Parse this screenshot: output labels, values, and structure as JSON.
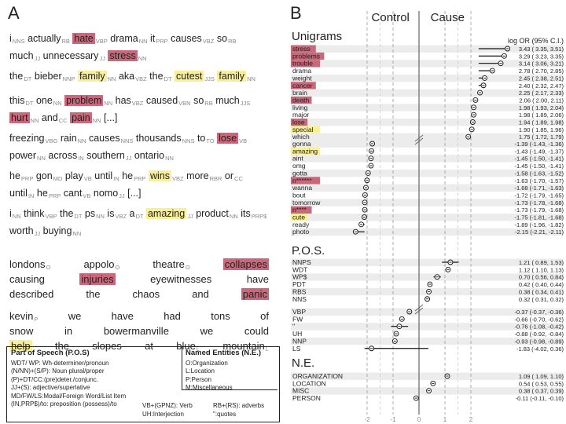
{
  "panel_a_label": "A",
  "panel_b_label": "B",
  "sentences": [
    {
      "tokens": [
        [
          "i",
          "NNS",
          ""
        ],
        [
          "actually",
          "RB",
          ""
        ],
        [
          "hate",
          "VBP",
          "red"
        ],
        [
          "drama",
          "NN",
          ""
        ],
        [
          "it",
          "PRP",
          ""
        ],
        [
          "causes",
          "VBZ",
          ""
        ],
        [
          "so",
          "RB",
          ""
        ],
        [
          "much",
          "JJ",
          ""
        ],
        [
          "unnecessary",
          "JJ",
          ""
        ],
        [
          "stress",
          "NN",
          "red"
        ]
      ]
    },
    {
      "tokens": [
        [
          "the",
          "DT",
          ""
        ],
        [
          "bieber",
          "NNP",
          ""
        ],
        [
          "family",
          "NN",
          "yel"
        ],
        [
          "aka",
          "VBZ",
          ""
        ],
        [
          "the",
          "DT",
          ""
        ],
        [
          "cutest",
          "JJS",
          "yel"
        ],
        [
          "family",
          "NN",
          "yel"
        ]
      ]
    },
    {
      "tokens": [
        [
          "this",
          "DT",
          ""
        ],
        [
          "one",
          "NN",
          ""
        ],
        [
          "problem",
          "NN",
          "red"
        ],
        [
          "has",
          "VBZ",
          ""
        ],
        [
          "caused",
          "VBN",
          ""
        ],
        [
          "so",
          "RB",
          ""
        ],
        [
          "much",
          "JJS",
          ""
        ],
        [
          "hurt",
          "NN",
          "red"
        ],
        [
          "and",
          "CC",
          ""
        ],
        [
          "pain",
          "NN",
          "red"
        ],
        [
          "[...]",
          "",
          ""
        ]
      ]
    },
    {
      "tokens": [
        [
          "freezing",
          "VBG",
          ""
        ],
        [
          "rain",
          "NN",
          ""
        ],
        [
          "causes",
          "NNS",
          ""
        ],
        [
          "thousands",
          "NNS",
          ""
        ],
        [
          "to",
          "TO",
          ""
        ],
        [
          "lose",
          "VB",
          "red"
        ],
        [
          "power",
          "NN",
          ""
        ],
        [
          "across",
          "IN",
          ""
        ],
        [
          "southern",
          "JJ",
          ""
        ],
        [
          "ontario",
          "NN",
          ""
        ]
      ]
    },
    {
      "tokens": [
        [
          "he",
          "PRP",
          ""
        ],
        [
          "gon",
          "MD",
          ""
        ],
        [
          "play",
          "VB",
          ""
        ],
        [
          "until",
          "IN",
          ""
        ],
        [
          "he",
          "PRP",
          ""
        ],
        [
          "wins",
          "VBZ",
          "yel"
        ],
        [
          "more",
          "RBR",
          ""
        ],
        [
          "or",
          "CC",
          ""
        ],
        [
          "until",
          "IN",
          ""
        ],
        [
          "he",
          "PRP",
          ""
        ],
        [
          "cant",
          "VB",
          ""
        ],
        [
          "nomo",
          "JJ",
          ""
        ],
        [
          "[...]",
          "",
          ""
        ]
      ]
    },
    {
      "tokens": [
        [
          "i",
          "NN",
          ""
        ],
        [
          "think",
          "VBP",
          ""
        ],
        [
          "the",
          "DT",
          ""
        ],
        [
          "ps",
          "NN",
          ""
        ],
        [
          "is",
          "VBZ",
          ""
        ],
        [
          "a",
          "DT",
          ""
        ],
        [
          "amazing",
          "JJ",
          "yel"
        ],
        [
          "product",
          "NN",
          ""
        ],
        [
          "its",
          "PRP$",
          ""
        ],
        [
          "worth",
          "JJ",
          ""
        ],
        [
          "buying",
          "NN",
          ""
        ]
      ]
    }
  ],
  "ner_sentences": [
    {
      "lines": [
        [
          [
            "londons",
            "O",
            ""
          ],
          [
            "appolo",
            "O",
            ""
          ],
          [
            "theatre",
            "O",
            ""
          ],
          [
            "collapses",
            "",
            "red"
          ]
        ],
        [
          [
            "causing",
            "",
            ""
          ],
          [
            "injuries",
            "",
            "red"
          ],
          [
            "eyewitnesses",
            "",
            ""
          ],
          [
            "have",
            "",
            ""
          ]
        ],
        [
          [
            "described",
            "",
            ""
          ],
          [
            "the",
            "",
            ""
          ],
          [
            "chaos",
            "",
            ""
          ],
          [
            "and",
            "",
            ""
          ],
          [
            "panic",
            "",
            "red"
          ]
        ]
      ]
    },
    {
      "lines": [
        [
          [
            "kevin",
            "P",
            ""
          ],
          [
            "we",
            "",
            ""
          ],
          [
            "have",
            "",
            ""
          ],
          [
            "had",
            "",
            ""
          ],
          [
            "tons",
            "",
            ""
          ],
          [
            "of",
            "",
            ""
          ]
        ],
        [
          [
            "snow",
            "",
            ""
          ],
          [
            "in",
            "",
            ""
          ],
          [
            "bowermanville",
            "",
            ""
          ],
          [
            "we",
            "",
            ""
          ],
          [
            "could",
            "",
            ""
          ]
        ],
        [
          [
            "help",
            "",
            "yel"
          ],
          [
            "the",
            "",
            ""
          ],
          [
            "slopes",
            "",
            ""
          ],
          [
            "at",
            "",
            ""
          ],
          [
            "blue",
            "L",
            ""
          ],
          [
            "mountain",
            "L",
            ""
          ]
        ]
      ]
    }
  ],
  "legend": {
    "pos_title": "Part of Speech (P.O.S)",
    "pos_lines": [
      "WDT/ WP: Wh-determiner/pronoun",
      "(N/NN)+(S/P): Noun plural/proper",
      "(P)+DT/CC:(pre)deter./conjunc.",
      "JJ+(S): adjective/superlative",
      "MD/FW/LS:Modal/Foreign Word/List Item",
      "(IN,PRP$)/to: preposition (possess)/to"
    ],
    "ne_title": "Named Entities (N.E.)",
    "ne_lines": [
      "O:Organization",
      "L:Location",
      "P:Person",
      "M:Miscellaneous"
    ],
    "extra_1": "VB+(GPNZ): Verb\nUH:Interjection",
    "extra_2": "RB+(RS): adverbs\n\":quotes"
  },
  "chart_data": {
    "type": "forest",
    "header_left": "Control",
    "header_right": "Cause",
    "stat_label": "log OR (95% C.I.)",
    "xlim": [
      -2.3,
      2.3
    ],
    "x_ticks": [
      -2,
      -1,
      0,
      1,
      2
    ],
    "sections": [
      {
        "title": "Unigrams",
        "groups": [
          [
            {
              "label": "stress",
              "value": 3.43,
              "lo": 3.35,
              "hi": 3.51,
              "hl": "red"
            },
            {
              "label": "problems",
              "value": 3.29,
              "lo": 3.23,
              "hi": 3.35,
              "hl": "red"
            },
            {
              "label": "trouble",
              "value": 3.14,
              "lo": 3.06,
              "hi": 3.21,
              "hl": "red"
            },
            {
              "label": "drama",
              "value": 2.78,
              "lo": 2.7,
              "hi": 2.85,
              "hl": ""
            },
            {
              "label": "weight",
              "value": 2.45,
              "lo": 2.38,
              "hi": 2.51,
              "hl": ""
            },
            {
              "label": "cancer",
              "value": 2.4,
              "lo": 2.32,
              "hi": 2.47,
              "hl": "red"
            },
            {
              "label": "brain",
              "value": 2.25,
              "lo": 2.17,
              "hi": 2.33,
              "hl": ""
            },
            {
              "label": "death",
              "value": 2.06,
              "lo": 2.0,
              "hi": 2.11,
              "hl": "red"
            },
            {
              "label": "living",
              "value": 1.98,
              "lo": 1.93,
              "hi": 2.04,
              "hl": ""
            },
            {
              "label": "major",
              "value": 1.98,
              "lo": 1.89,
              "hi": 2.06,
              "hl": ""
            },
            {
              "label": "lose",
              "value": 1.94,
              "lo": 1.89,
              "hi": 1.98,
              "hl": "red"
            },
            {
              "label": "special",
              "value": 1.9,
              "lo": 1.85,
              "hi": 1.96,
              "hl": "yel"
            },
            {
              "label": "which",
              "value": 1.75,
              "lo": 1.72,
              "hi": 1.79,
              "hl": ""
            }
          ],
          [
            {
              "label": "gonna",
              "value": -1.39,
              "lo": -1.43,
              "hi": -1.36,
              "hl": ""
            },
            {
              "label": "amazing",
              "value": -1.43,
              "lo": -1.49,
              "hi": -1.37,
              "hl": "yel"
            },
            {
              "label": "aint",
              "value": -1.45,
              "lo": -1.5,
              "hi": -1.41,
              "hl": ""
            },
            {
              "label": "omg",
              "value": -1.45,
              "lo": -1.5,
              "hi": -1.41,
              "hl": ""
            },
            {
              "label": "gotta",
              "value": -1.58,
              "lo": -1.63,
              "hi": -1.52,
              "hl": ""
            },
            {
              "label": "n******",
              "value": -1.63,
              "lo": -1.7,
              "hi": -1.57,
              "hl": "red"
            },
            {
              "label": "wanna",
              "value": -1.68,
              "lo": -1.71,
              "hi": -1.63,
              "hl": ""
            },
            {
              "label": "bout",
              "value": -1.72,
              "lo": -1.79,
              "hi": -1.65,
              "hl": ""
            },
            {
              "label": "tomorrow",
              "value": -1.73,
              "lo": -1.78,
              "hi": -1.68,
              "hl": ""
            },
            {
              "label": "n****",
              "value": -1.73,
              "lo": -1.79,
              "hi": -1.68,
              "hl": "red"
            },
            {
              "label": "cute",
              "value": -1.75,
              "lo": -1.81,
              "hi": -1.68,
              "hl": "yel"
            },
            {
              "label": "ready",
              "value": -1.89,
              "lo": -1.96,
              "hi": -1.82,
              "hl": ""
            },
            {
              "label": "photo",
              "value": -2.15,
              "lo": -2.21,
              "hi": -2.11,
              "hl": ""
            }
          ]
        ]
      },
      {
        "title": "P.O.S.",
        "groups": [
          [
            {
              "label": "NNPS",
              "value": 1.21,
              "lo": 0.89,
              "hi": 1.53,
              "hl": ""
            },
            {
              "label": "WDT",
              "value": 1.12,
              "lo": 1.1,
              "hi": 1.13,
              "hl": ""
            },
            {
              "label": "WP$",
              "value": 0.7,
              "lo": 0.56,
              "hi": 0.84,
              "hl": ""
            },
            {
              "label": "PDT",
              "value": 0.42,
              "lo": 0.4,
              "hi": 0.44,
              "hl": ""
            },
            {
              "label": "RBS",
              "value": 0.38,
              "lo": 0.34,
              "hi": 0.41,
              "hl": ""
            },
            {
              "label": "NNS",
              "value": 0.32,
              "lo": 0.31,
              "hi": 0.32,
              "hl": ""
            }
          ],
          [
            {
              "label": "VBP",
              "value": -0.37,
              "lo": -0.37,
              "hi": -0.36,
              "hl": ""
            },
            {
              "label": "FW",
              "value": -0.66,
              "lo": -0.7,
              "hi": -0.62,
              "hl": ""
            },
            {
              "label": "''",
              "value": -0.76,
              "lo": -1.08,
              "hi": -0.42,
              "hl": ""
            },
            {
              "label": "UH",
              "value": -0.88,
              "lo": -0.92,
              "hi": -0.84,
              "hl": ""
            },
            {
              "label": "NNP",
              "value": -0.93,
              "lo": -0.98,
              "hi": -0.89,
              "hl": ""
            },
            {
              "label": "LS",
              "value": -1.83,
              "lo": -4.02,
              "hi": 0.36,
              "hl": ""
            }
          ]
        ]
      },
      {
        "title": "N.E.",
        "groups": [
          [
            {
              "label": "ORGANIZATION",
              "value": 1.09,
              "lo": 1.09,
              "hi": 1.1,
              "hl": ""
            },
            {
              "label": "LOCATION",
              "value": 0.54,
              "lo": 0.53,
              "hi": 0.55,
              "hl": ""
            },
            {
              "label": "MISC",
              "value": 0.38,
              "lo": 0.37,
              "hi": 0.39,
              "hl": ""
            },
            {
              "label": "PERSON",
              "value": -0.11,
              "lo": -0.11,
              "hi": -0.1,
              "hl": ""
            }
          ]
        ]
      }
    ]
  }
}
